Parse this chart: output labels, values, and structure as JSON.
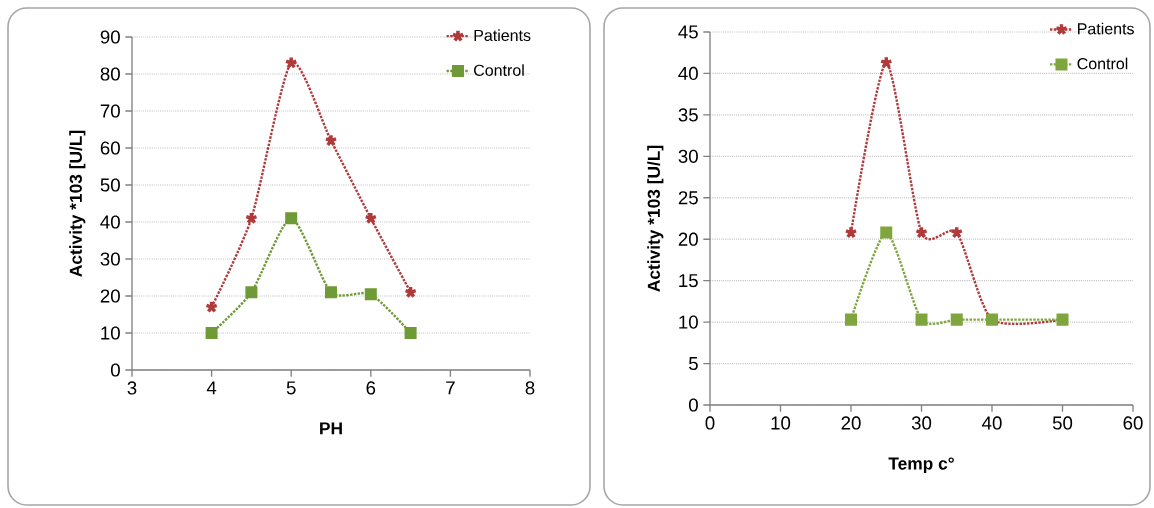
{
  "chart_data": [
    {
      "type": "line",
      "xlabel": "PH",
      "ylabel": "Activity *103 [U/L]",
      "x": [
        4,
        4.5,
        5,
        5.5,
        6,
        6.5
      ],
      "xlim": [
        3,
        8
      ],
      "xticks": [
        3,
        4,
        5,
        6,
        7,
        8
      ],
      "ylim": [
        0,
        90
      ],
      "yticks": [
        0,
        10,
        20,
        30,
        40,
        50,
        60,
        70,
        80,
        90
      ],
      "grid": "y",
      "legend": "top right",
      "line_style": "dotted",
      "series": [
        {
          "name": "Patients",
          "color": "#b03a3a",
          "marker": "cross",
          "values": [
            17,
            41,
            83,
            62,
            41,
            21
          ]
        },
        {
          "name": "Control",
          "color": "#6f9a35",
          "marker": "square",
          "values": [
            10,
            21,
            41,
            21,
            20.5,
            10
          ]
        }
      ]
    },
    {
      "type": "line",
      "xlabel": "Temp c°",
      "ylabel": "Activity *103 [U/L]",
      "x": [
        20,
        25,
        30,
        35,
        40,
        50
      ],
      "xlim": [
        0,
        60
      ],
      "xticks": [
        0,
        10,
        20,
        30,
        40,
        50,
        60
      ],
      "ylim": [
        0,
        45
      ],
      "yticks": [
        0,
        5,
        10,
        15,
        20,
        25,
        30,
        35,
        40,
        45
      ],
      "grid": "y",
      "legend": "top right",
      "line_style": "dotted",
      "series": [
        {
          "name": "Patients",
          "color": "#b03a3a",
          "marker": "cross",
          "values": [
            20.8,
            41.3,
            20.8,
            20.8,
            10.3,
            10.3
          ]
        },
        {
          "name": "Control",
          "color": "#7fa63e",
          "marker": "square",
          "values": [
            10.3,
            20.8,
            10.3,
            10.3,
            10.3,
            10.3
          ]
        }
      ]
    }
  ]
}
